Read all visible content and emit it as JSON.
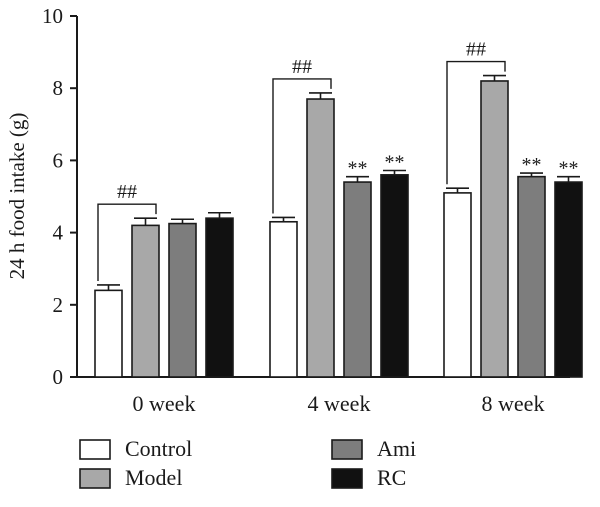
{
  "chart_data": {
    "type": "bar",
    "ylabel": "24 h food intake (g)",
    "ylim": [
      0,
      10
    ],
    "yticks": [
      "0",
      "2",
      "4",
      "6",
      "8",
      "10"
    ],
    "categories": [
      "0 week",
      "4 week",
      "8 week"
    ],
    "series": [
      {
        "name": "Control",
        "color": "#ffffff",
        "values": [
          2.4,
          4.3,
          5.1
        ],
        "errors": [
          0.15,
          0.12,
          0.13
        ]
      },
      {
        "name": "Model",
        "color": "#a8a8a8",
        "values": [
          4.2,
          7.7,
          8.2
        ],
        "errors": [
          0.2,
          0.17,
          0.15
        ]
      },
      {
        "name": "Ami",
        "color": "#7d7d7d",
        "values": [
          4.25,
          5.4,
          5.55
        ],
        "errors": [
          0.12,
          0.15,
          0.1
        ]
      },
      {
        "name": "RC",
        "color": "#111111",
        "values": [
          4.4,
          5.6,
          5.4
        ],
        "errors": [
          0.15,
          0.12,
          0.15
        ]
      }
    ],
    "annotations": [
      {
        "text": "##",
        "category": 0,
        "from_series": 0,
        "to_series": 1
      },
      {
        "text": "##",
        "category": 1,
        "from_series": 0,
        "to_series": 1
      },
      {
        "text": "##",
        "category": 2,
        "from_series": 0,
        "to_series": 1
      },
      {
        "text": "**",
        "category": 1,
        "series": 2
      },
      {
        "text": "**",
        "category": 1,
        "series": 3
      },
      {
        "text": "**",
        "category": 2,
        "series": 2
      },
      {
        "text": "**",
        "category": 2,
        "series": 3
      }
    ],
    "legend_position": "bottom",
    "grid": false
  }
}
